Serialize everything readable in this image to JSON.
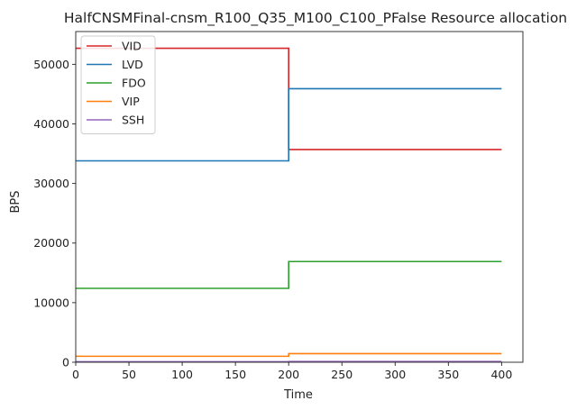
{
  "chart_data": {
    "type": "line",
    "step": true,
    "title": "HalfCNSMFinal-cnsm_R100_Q35_M100_C100_PFalse Resource allocation",
    "xlabel": "Time",
    "ylabel": "BPS",
    "xlim": [
      0,
      420
    ],
    "ylim": [
      0,
      55500
    ],
    "xticks": [
      0,
      50,
      100,
      150,
      200,
      250,
      300,
      350,
      400
    ],
    "yticks": [
      0,
      10000,
      20000,
      30000,
      40000,
      50000
    ],
    "grid": false,
    "legend_position": "top-left",
    "series": [
      {
        "name": "VID",
        "color": "#d62728",
        "x": [
          0,
          200,
          400
        ],
        "y": [
          52700,
          35700,
          35700
        ]
      },
      {
        "name": "LVD",
        "color": "#1f77b4",
        "x": [
          0,
          200,
          400
        ],
        "y": [
          33800,
          45900,
          45900
        ]
      },
      {
        "name": "FDO",
        "color": "#2ca02c",
        "x": [
          0,
          200,
          400
        ],
        "y": [
          12400,
          16900,
          16900
        ]
      },
      {
        "name": "VIP",
        "color": "#ff7f0e",
        "x": [
          0,
          200,
          400
        ],
        "y": [
          1000,
          1450,
          1450
        ]
      },
      {
        "name": "SSH",
        "color": "#9467bd",
        "x": [
          0,
          200,
          400
        ],
        "y": [
          80,
          120,
          120
        ]
      }
    ]
  }
}
